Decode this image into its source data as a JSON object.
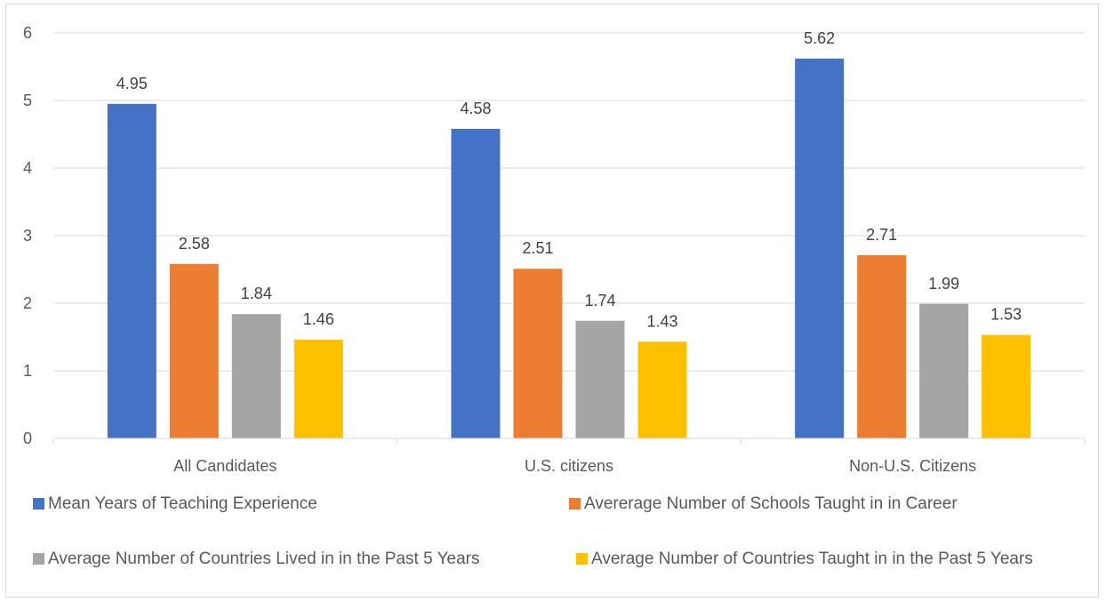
{
  "chart_data": {
    "type": "bar",
    "title": "",
    "xlabel": "",
    "ylabel": "",
    "ylim": [
      0,
      6
    ],
    "yticks": [
      0,
      1,
      2,
      3,
      4,
      5,
      6
    ],
    "grid": true,
    "legend_position": "bottom",
    "categories": [
      "All Candidates",
      "U.S. citizens",
      "Non-U.S. Citizens"
    ],
    "series": [
      {
        "name": "Mean Years of Teaching Experience",
        "color": "#4472c4",
        "values": [
          4.95,
          4.58,
          5.62
        ]
      },
      {
        "name": "Avererage Number of Schools Taught in in Career",
        "color": "#ed7d31",
        "values": [
          2.58,
          2.51,
          2.71
        ]
      },
      {
        "name": "Average Number of Countries Lived in in the Past 5 Years",
        "color": "#a5a5a5",
        "values": [
          1.84,
          1.74,
          1.99
        ]
      },
      {
        "name": "Average Number of Countries Taught in in the Past 5 Years",
        "color": "#ffc000",
        "values": [
          1.46,
          1.43,
          1.53
        ]
      }
    ]
  }
}
